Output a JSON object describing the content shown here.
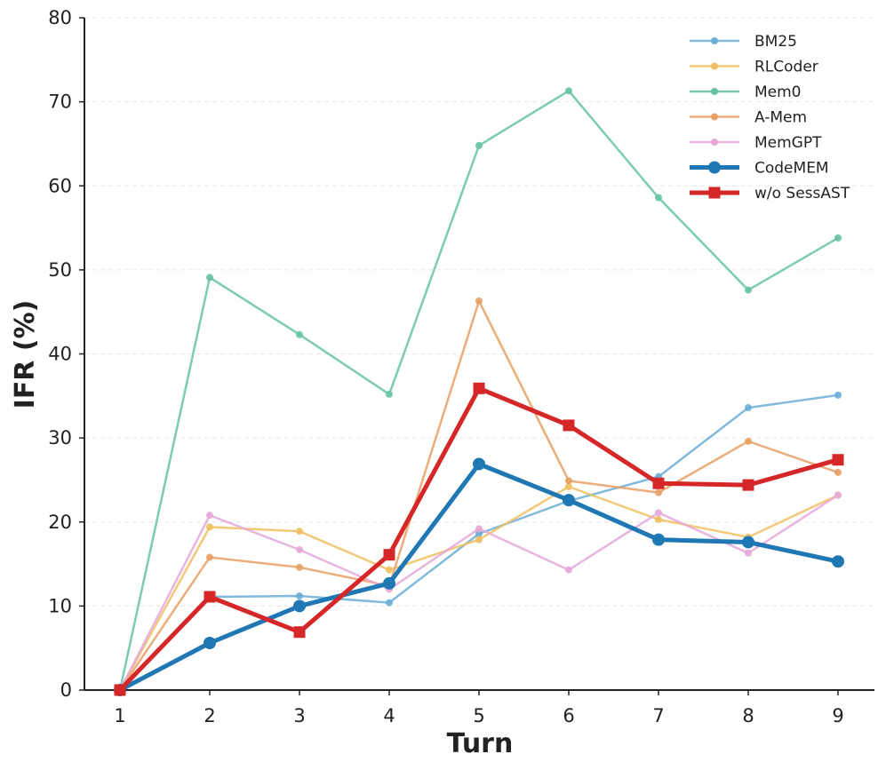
{
  "chart_data": {
    "type": "line",
    "xlabel": "Turn",
    "ylabel": "IFR (%)",
    "x": [
      1,
      2,
      3,
      4,
      5,
      6,
      7,
      8,
      9
    ],
    "xticks": [
      "1",
      "2",
      "3",
      "4",
      "5",
      "6",
      "7",
      "8",
      "9"
    ],
    "ylim": [
      0,
      80
    ],
    "yticks": [
      "0",
      "10",
      "20",
      "30",
      "40",
      "50",
      "60",
      "70",
      "80"
    ],
    "grid": "horizontal dashed",
    "legend_position": "top-right",
    "series": [
      {
        "name": "BM25",
        "color": "#6baed6",
        "marker": "circle",
        "emphasis": false,
        "values": [
          0,
          11.1,
          11.2,
          10.4,
          18.6,
          22.5,
          25.4,
          33.6,
          35.1
        ]
      },
      {
        "name": "RLCoder",
        "color": "#f0c060",
        "marker": "circle",
        "emphasis": false,
        "values": [
          0,
          19.4,
          18.9,
          14.3,
          17.9,
          24.2,
          20.3,
          18.2,
          23.2
        ]
      },
      {
        "name": "Mem0",
        "color": "#66c2a5",
        "marker": "circle",
        "emphasis": false,
        "values": [
          0,
          49.1,
          42.3,
          35.2,
          64.8,
          71.3,
          58.6,
          47.6,
          53.8
        ]
      },
      {
        "name": "A-Mem",
        "color": "#e8a064",
        "marker": "circle",
        "emphasis": false,
        "values": [
          0,
          15.8,
          14.6,
          12.4,
          46.3,
          24.9,
          23.5,
          29.6,
          25.9
        ]
      },
      {
        "name": "MemGPT",
        "color": "#e5a8d8",
        "marker": "circle",
        "emphasis": false,
        "values": [
          0,
          20.8,
          16.7,
          12.0,
          19.2,
          14.3,
          21.1,
          16.3,
          23.2
        ]
      },
      {
        "name": "CodeMEM",
        "color": "#1f77b4",
        "marker": "circle",
        "emphasis": true,
        "values": [
          0,
          5.6,
          10.0,
          12.7,
          26.9,
          22.6,
          17.9,
          17.6,
          15.3
        ]
      },
      {
        "name": "w/o SessAST",
        "color": "#d62728",
        "marker": "square",
        "emphasis": true,
        "values": [
          0,
          11.1,
          6.9,
          16.1,
          35.9,
          31.5,
          24.6,
          24.4,
          27.4
        ]
      }
    ]
  }
}
